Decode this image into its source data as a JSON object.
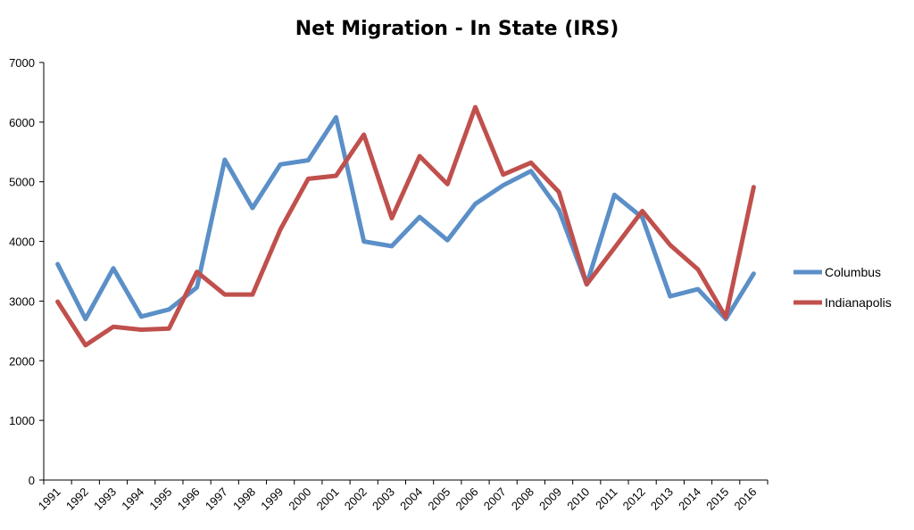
{
  "chart_data": {
    "type": "line",
    "title": "Net Migration - In State (IRS)",
    "xlabel": "",
    "ylabel": "",
    "ylim": [
      0,
      7000
    ],
    "yticks": [
      0,
      1000,
      2000,
      3000,
      4000,
      5000,
      6000,
      7000
    ],
    "grid": false,
    "legend_position": "right",
    "categories": [
      "1991",
      "1992",
      "1993",
      "1994",
      "1995",
      "1996",
      "1997",
      "1998",
      "1999",
      "2000",
      "2001",
      "2002",
      "2003",
      "2004",
      "2005",
      "2006",
      "2007",
      "2008",
      "2009",
      "2010",
      "2011",
      "2012",
      "2013",
      "2014",
      "2015",
      "2016"
    ],
    "series": [
      {
        "name": "Columbus",
        "color": "#5B8FC7",
        "values": [
          3620,
          2700,
          3550,
          2740,
          2860,
          3230,
          5370,
          4560,
          5290,
          5360,
          6080,
          4000,
          3920,
          4410,
          4020,
          4630,
          4940,
          5180,
          4530,
          3280,
          4780,
          4400,
          3080,
          3200,
          2700,
          3460
        ]
      },
      {
        "name": "Indianapolis",
        "color": "#C0504D",
        "values": [
          2990,
          2260,
          2570,
          2520,
          2540,
          3490,
          3110,
          3110,
          4200,
          5050,
          5100,
          5790,
          4390,
          5430,
          4960,
          6250,
          5120,
          5320,
          4830,
          3280,
          3890,
          4510,
          3940,
          3530,
          2730,
          4910
        ]
      }
    ]
  }
}
